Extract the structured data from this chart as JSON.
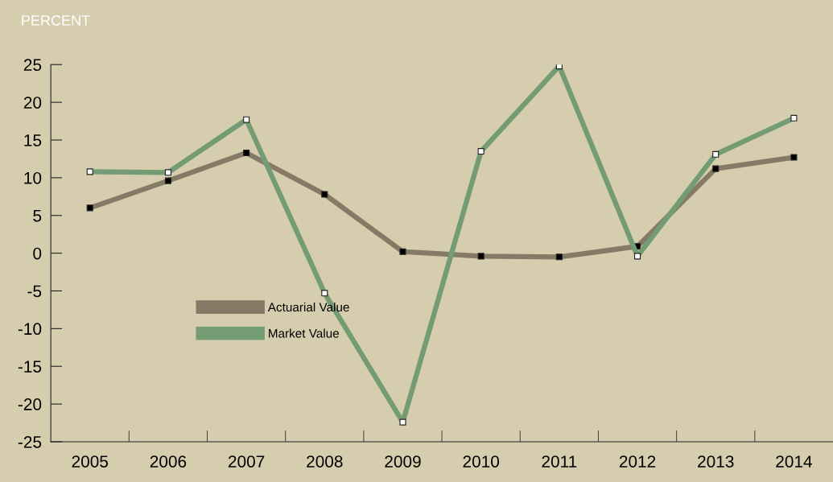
{
  "chart_data": {
    "type": "line",
    "ylabel": "PERCENT",
    "categories": [
      "2005",
      "2006",
      "2007",
      "2008",
      "2009",
      "2010",
      "2011",
      "2012",
      "2013",
      "2014"
    ],
    "series": [
      {
        "name": "Actuarial Value",
        "color": "#857a66",
        "values": [
          6.0,
          9.6,
          13.3,
          7.8,
          0.2,
          -0.4,
          -0.5,
          0.9,
          11.2,
          12.7
        ]
      },
      {
        "name": "Market Value",
        "color": "#739b74",
        "values": [
          10.8,
          10.7,
          17.7,
          -5.3,
          -22.4,
          13.5,
          24.8,
          -0.4,
          13.1,
          17.9
        ]
      }
    ],
    "ylim": [
      -25,
      25
    ],
    "yticks": [
      -25,
      -20,
      -15,
      -10,
      -5,
      0,
      5,
      10,
      15,
      20,
      25
    ],
    "grid": false,
    "legend": "lower left",
    "marker": "square",
    "line_style": "solid"
  }
}
